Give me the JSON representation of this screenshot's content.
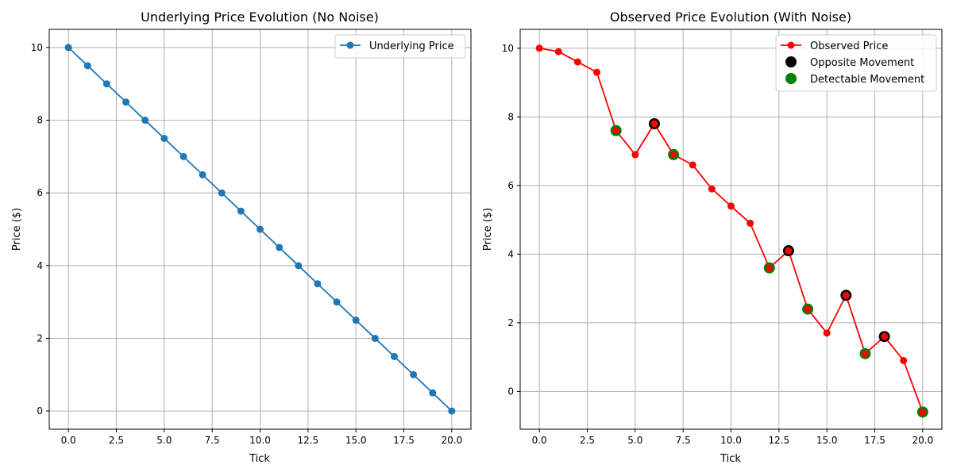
{
  "chart_data": [
    {
      "type": "line",
      "title": "Underlying Price Evolution (No Noise)",
      "xlabel": "Tick",
      "ylabel": "Price ($)",
      "xlim": [
        -1,
        21
      ],
      "ylim": [
        -0.5,
        10.5
      ],
      "xticks": [
        "0.0",
        "2.5",
        "5.0",
        "7.5",
        "10.0",
        "12.5",
        "15.0",
        "17.5",
        "20.0"
      ],
      "yticks": [
        "0",
        "2",
        "4",
        "6",
        "8",
        "10"
      ],
      "grid": true,
      "legend_position": "top-right",
      "series": [
        {
          "name": "Underlying Price",
          "kind": "line-marker",
          "color": "#1f77b4",
          "x": [
            0,
            1,
            2,
            3,
            4,
            5,
            6,
            7,
            8,
            9,
            10,
            11,
            12,
            13,
            14,
            15,
            16,
            17,
            18,
            19,
            20
          ],
          "y": [
            10,
            9.5,
            9,
            8.5,
            8,
            7.5,
            7,
            6.5,
            6,
            5.5,
            5,
            4.5,
            4,
            3.5,
            3,
            2.5,
            2,
            1.5,
            1,
            0.5,
            0
          ]
        }
      ]
    },
    {
      "type": "line",
      "title": "Observed Price Evolution (With Noise)",
      "xlabel": "Tick",
      "ylabel": "Price ($)",
      "xlim": [
        -1,
        21
      ],
      "ylim": [
        -1.1,
        10.55
      ],
      "xticks": [
        "0.0",
        "2.5",
        "5.0",
        "7.5",
        "10.0",
        "12.5",
        "15.0",
        "17.5",
        "20.0"
      ],
      "yticks": [
        "0",
        "2",
        "4",
        "6",
        "8",
        "10"
      ],
      "grid": true,
      "legend_position": "top-right",
      "series": [
        {
          "name": "Observed Price",
          "kind": "line-marker",
          "color": "#ff0000",
          "x": [
            0,
            1,
            2,
            3,
            4,
            5,
            6,
            7,
            8,
            9,
            10,
            11,
            12,
            13,
            14,
            15,
            16,
            17,
            18,
            19,
            20
          ],
          "y": [
            10,
            9.9,
            9.6,
            9.3,
            7.6,
            6.9,
            7.8,
            6.9,
            6.6,
            5.9,
            5.4,
            4.9,
            3.6,
            4.1,
            2.4,
            1.7,
            2.8,
            1.1,
            1.6,
            0.9,
            -0.6
          ]
        },
        {
          "name": "Opposite Movement",
          "kind": "scatter",
          "color": "#000000",
          "x": [
            6,
            13,
            16,
            18
          ],
          "y": [
            7.8,
            4.1,
            2.8,
            1.6
          ]
        },
        {
          "name": "Detectable Movement",
          "kind": "scatter",
          "color": "#008000",
          "x": [
            4,
            7,
            12,
            14,
            17,
            20
          ],
          "y": [
            7.6,
            6.9,
            3.6,
            2.4,
            1.1,
            -0.6
          ]
        }
      ]
    }
  ]
}
